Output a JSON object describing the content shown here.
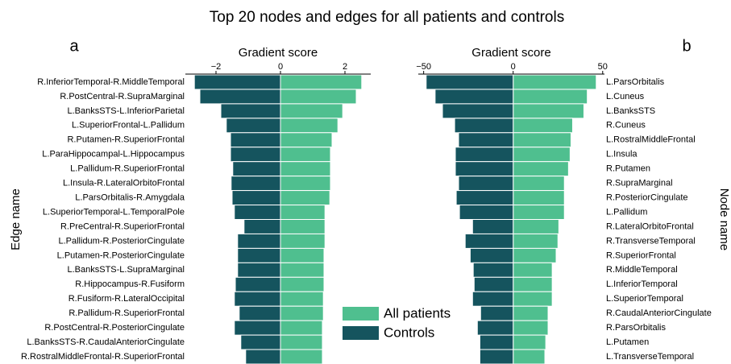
{
  "title": "Top 20 nodes and edges for all patients and controls",
  "chart_data": [
    {
      "type": "bar",
      "label": "a",
      "xlabel": "Gradient score",
      "ylabel": "Edge name",
      "categories": [
        "R.InferiorTemporal-R.MiddleTemporal",
        "R.PostCentral-R.SupraMarginal",
        "L.BanksSTS-L.InferiorParietal",
        "L.SuperiorFrontal-L.Pallidum",
        "R.Putamen-R.SuperiorFrontal",
        "L.ParaHippocampal-L.Hippocampus",
        "L.Pallidum-R.SuperiorFrontal",
        "L.Insula-R.LateralOrbitoFrontal",
        "L.ParsOrbitalis-R.Amygdala",
        "L.SuperiorTemporal-L.TemporalPole",
        "R.PreCentral-R.SuperiorFrontal",
        "L.Pallidum-R.PosteriorCingulate",
        "L.Putamen-R.PosteriorCingulate",
        "L.BanksSTS-L.SupraMarginal",
        "R.Hippocampus-R.Fusiform",
        "R.Fusiform-R.LateralOccipital",
        "R.Pallidum-R.SuperiorFrontal",
        "R.PostCentral-R.PosteriorCingulate",
        "L.BanksSTS-R.CaudalAnteriorCingulate",
        "R.RostralMiddleFrontal-R.SuperiorFrontal"
      ],
      "series": [
        {
          "name": "All patients",
          "color": "#4fbf8f",
          "values": [
            2.52,
            2.35,
            1.93,
            1.78,
            1.6,
            1.55,
            1.55,
            1.55,
            1.53,
            1.38,
            1.38,
            1.38,
            1.35,
            1.35,
            1.35,
            1.33,
            1.33,
            1.3,
            1.3,
            1.3
          ]
        },
        {
          "name": "Controls",
          "color": "#15545e",
          "values": [
            -2.67,
            -2.5,
            -1.85,
            -1.68,
            -1.55,
            -1.55,
            -1.48,
            -1.53,
            -1.5,
            -1.43,
            -1.13,
            -1.33,
            -1.33,
            -1.33,
            -1.4,
            -1.43,
            -1.28,
            -1.43,
            -1.23,
            -1.08
          ]
        }
      ],
      "xlim": [
        -2.95,
        2.8
      ],
      "xticks": [
        {
          "value": -2,
          "label": "−2"
        },
        0,
        2
      ]
    },
    {
      "type": "bar",
      "label": "b",
      "xlabel": "Gradient score",
      "ylabel": "Node name",
      "categories": [
        "L.ParsOrbitalis",
        "L.Cuneus",
        "L.BanksSTS",
        "R.Cuneus",
        "L.RostralMiddleFrontal",
        "L.Insula",
        "R.Putamen",
        "R.SupraMarginal",
        "R.PosteriorCingulate",
        "L.Pallidum",
        "R.LateralOrbitoFrontal",
        "R.TransverseTemporal",
        "R.SuperiorFrontal",
        "R.MiddleTemporal",
        "L.InferiorTemporal",
        "L.SuperiorTemporal",
        "R.CaudalAnteriorCingulate",
        "R.ParsOrbitalis",
        "L.Putamen",
        "L.TransverseTemporal"
      ],
      "series": [
        {
          "color": "#4fbf8f",
          "values": [
            46.4,
            41.4,
            39.5,
            33.2,
            32.3,
            31.8,
            30.9,
            28.6,
            28.6,
            28.6,
            25.5,
            25,
            24,
            21.8,
            21.8,
            21.8,
            19.5,
            19.5,
            18.2,
            17.7
          ]
        },
        {
          "color": "#15545e",
          "values": [
            -48.6,
            -43.6,
            -39.5,
            -32.7,
            -30.5,
            -32.3,
            -32.3,
            -30.5,
            -31.8,
            -30,
            -22.7,
            -26.8,
            -24,
            -22.3,
            -21.8,
            -22.7,
            -18.2,
            -20,
            -18.6,
            -18.6
          ]
        }
      ],
      "xlim": [
        -53,
        51
      ],
      "xticks": [
        {
          "value": -50,
          "label": "−50"
        },
        0,
        50
      ]
    }
  ]
}
